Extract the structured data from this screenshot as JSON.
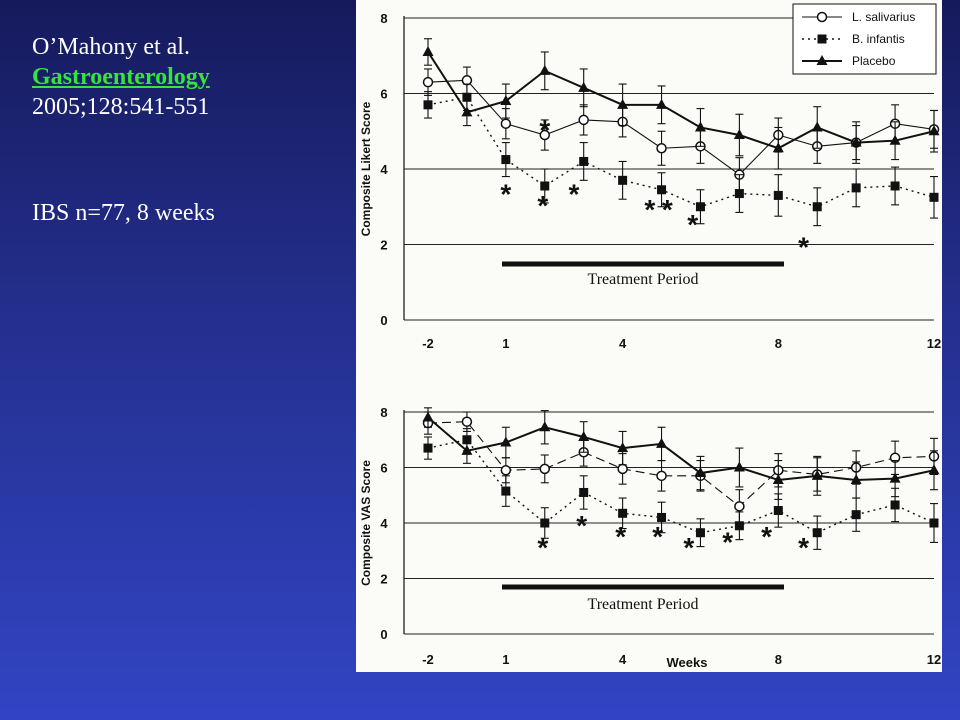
{
  "citation": {
    "authors": "O’Mahony et al.",
    "journal": "Gastroenterology",
    "reference": "2005;128:541-551",
    "study": "IBS n=77,  8 weeks"
  },
  "colors": {
    "background_top": "#161a5c",
    "background_bottom": "#3244c4",
    "journal_text": "#33e63a",
    "citation_text": "#ffffff",
    "figure_background": "#fbfbf8",
    "ink": "#111111"
  },
  "chart_data": [
    {
      "type": "line",
      "xlabel": "",
      "ylabel": "Composite Likert Score",
      "x_tick_labels": [
        "-2",
        "1",
        "4",
        "8",
        "12"
      ],
      "y_ticks": [
        0,
        2,
        4,
        6,
        8
      ],
      "ylim": [
        0,
        8
      ],
      "grid": true,
      "legend_position": "top-right",
      "band_label": "Treatment Period",
      "series": [
        {
          "name": "L. salivarius",
          "marker": "open-circle",
          "line": "solid-thin",
          "values": [
            6.3,
            6.35,
            5.2,
            4.9,
            5.3,
            5.25,
            4.55,
            4.6,
            3.85,
            4.9,
            4.6,
            4.7,
            5.2,
            5.05
          ],
          "errors": [
            0.35,
            0.35,
            0.4,
            0.4,
            0.4,
            0.4,
            0.45,
            0.45,
            0.45,
            0.45,
            0.45,
            0.45,
            0.5,
            0.5
          ]
        },
        {
          "name": "B. infantis",
          "marker": "filled-square",
          "line": "dotted",
          "values": [
            5.7,
            5.9,
            4.25,
            3.55,
            4.2,
            3.7,
            3.45,
            3.0,
            3.35,
            3.3,
            3.0,
            3.5,
            3.55,
            3.25
          ],
          "errors": [
            0.35,
            0.35,
            0.45,
            0.45,
            0.5,
            0.5,
            0.45,
            0.45,
            0.5,
            0.55,
            0.5,
            0.5,
            0.5,
            0.55
          ]
        },
        {
          "name": "Placebo",
          "marker": "filled-triangle",
          "line": "solid",
          "values": [
            7.1,
            5.5,
            5.8,
            6.6,
            6.15,
            5.7,
            5.7,
            5.1,
            4.9,
            4.55,
            5.1,
            4.7,
            4.75,
            5.0
          ],
          "errors": [
            0.35,
            0.35,
            0.45,
            0.5,
            0.5,
            0.55,
            0.5,
            0.5,
            0.55,
            0.55,
            0.55,
            0.55,
            0.5,
            0.55
          ]
        }
      ],
      "significance_marks": [
        {
          "label": "*",
          "x_index": 2.0,
          "y": 3.4
        },
        {
          "label": "*",
          "x_index": 2.95,
          "y": 3.1
        },
        {
          "label": "*",
          "x_index": 3.0,
          "y": 5.1
        },
        {
          "label": "*",
          "x_index": 3.75,
          "y": 3.4
        },
        {
          "label": "*",
          "x_index": 5.7,
          "y": 3.0
        },
        {
          "label": "*",
          "x_index": 6.15,
          "y": 3.0
        },
        {
          "label": "*",
          "x_index": 6.8,
          "y": 2.6
        },
        {
          "label": "*",
          "x_index": 9.65,
          "y": 2.0
        }
      ]
    },
    {
      "type": "line",
      "xlabel": "Weeks",
      "ylabel": "Composite VAS Score",
      "x_tick_labels": [
        "-2",
        "1",
        "4",
        "8",
        "12"
      ],
      "y_ticks": [
        0,
        2,
        4,
        6,
        8
      ],
      "ylim": [
        0,
        8
      ],
      "grid": true,
      "band_label": "Treatment Period",
      "series": [
        {
          "name": "L. salivarius",
          "marker": "open-circle",
          "line": "dashed",
          "values": [
            7.6,
            7.65,
            5.9,
            5.95,
            6.55,
            5.95,
            5.7,
            5.7,
            4.6,
            5.9,
            5.75,
            6.0,
            6.35,
            6.4
          ],
          "errors": [
            0.4,
            0.35,
            0.45,
            0.5,
            0.5,
            0.55,
            0.55,
            0.55,
            0.6,
            0.6,
            0.6,
            0.6,
            0.6,
            0.65
          ]
        },
        {
          "name": "B. infantis",
          "marker": "filled-square",
          "line": "dotted",
          "values": [
            6.7,
            7.0,
            5.15,
            4.0,
            5.1,
            4.35,
            4.2,
            3.65,
            3.9,
            4.45,
            3.65,
            4.3,
            4.65,
            4.0
          ],
          "errors": [
            0.4,
            0.4,
            0.55,
            0.55,
            0.6,
            0.55,
            0.55,
            0.5,
            0.5,
            0.6,
            0.6,
            0.6,
            0.6,
            0.7
          ]
        },
        {
          "name": "Placebo",
          "marker": "filled-triangle",
          "line": "solid",
          "values": [
            7.8,
            6.6,
            6.9,
            7.45,
            7.1,
            6.7,
            6.85,
            5.8,
            6.0,
            5.55,
            5.7,
            5.55,
            5.6,
            5.9
          ],
          "errors": [
            0.35,
            0.45,
            0.55,
            0.6,
            0.55,
            0.6,
            0.6,
            0.6,
            0.7,
            0.7,
            0.7,
            0.65,
            0.65,
            0.7
          ]
        }
      ],
      "significance_marks": [
        {
          "label": "*",
          "x_index": 2.95,
          "y": 3.2
        },
        {
          "label": "*",
          "x_index": 3.95,
          "y": 4.0
        },
        {
          "label": "*",
          "x_index": 4.95,
          "y": 3.6
        },
        {
          "label": "*",
          "x_index": 5.9,
          "y": 3.6
        },
        {
          "label": "*",
          "x_index": 6.7,
          "y": 3.2
        },
        {
          "label": "*",
          "x_index": 7.7,
          "y": 3.4
        },
        {
          "label": "*",
          "x_index": 8.7,
          "y": 3.6
        },
        {
          "label": "*",
          "x_index": 9.65,
          "y": 3.2
        }
      ]
    }
  ]
}
